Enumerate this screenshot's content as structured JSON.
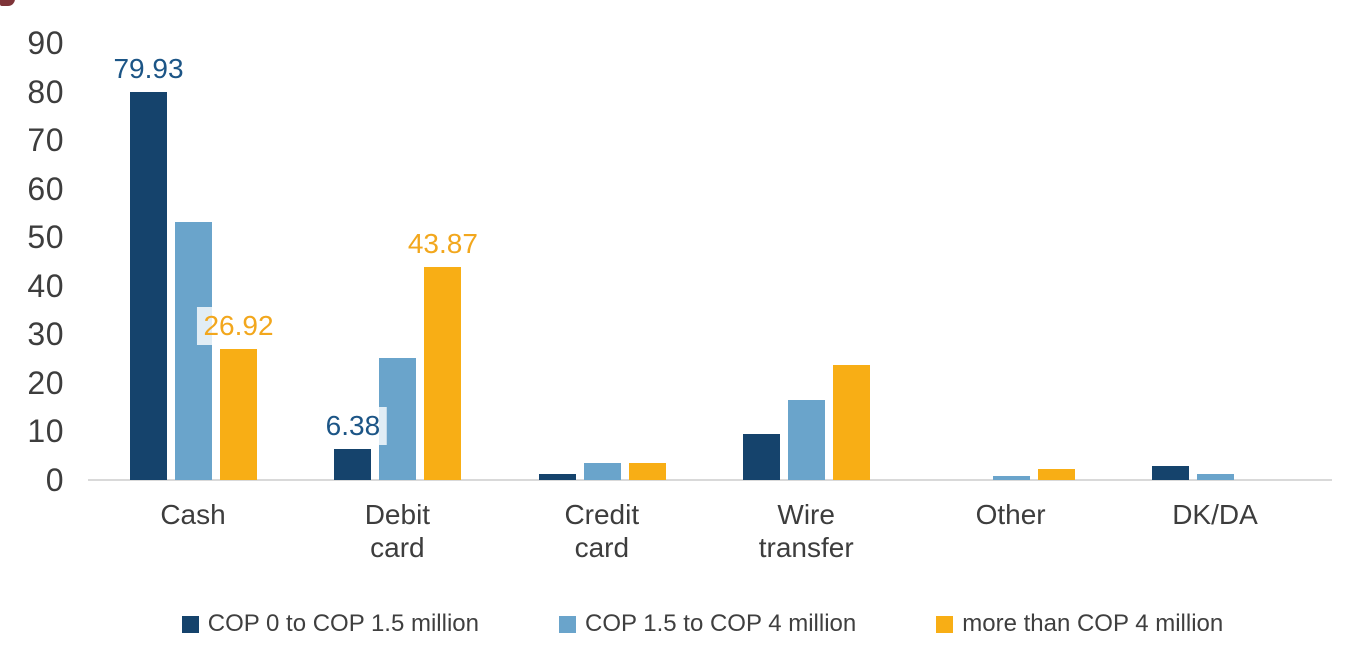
{
  "chart_data": {
    "type": "bar",
    "title": "",
    "xlabel": "",
    "ylabel": "",
    "categories": [
      "Cash",
      "Debit card",
      "Credit card",
      "Wire transfer",
      "Other",
      "DK/DA"
    ],
    "category_label_lines": [
      [
        "Cash"
      ],
      [
        "Debit",
        "card"
      ],
      [
        "Credit",
        "card"
      ],
      [
        "Wire",
        "transfer"
      ],
      [
        "Other"
      ],
      [
        "DK/DA"
      ]
    ],
    "series": [
      {
        "name": "COP 0 to COP 1.5 million",
        "color": "#15436C",
        "label_color": "#1C5586",
        "values": [
          79.93,
          6.38,
          1.2,
          9.5,
          0,
          2.9
        ]
      },
      {
        "name": "COP 1.5 to COP 4 million",
        "color": "#6AA4CB",
        "label_color": "#6AA4CB",
        "values": [
          53.1,
          25.1,
          3.6,
          16.5,
          0.8,
          1.2
        ]
      },
      {
        "name": "more than COP 4 million",
        "color": "#F8AE15",
        "label_color": "#F2A71D",
        "values": [
          26.92,
          43.87,
          3.6,
          23.7,
          2.3,
          0
        ]
      }
    ],
    "data_labels": [
      {
        "series": 0,
        "category": 0,
        "text": "79.93"
      },
      {
        "series": 2,
        "category": 0,
        "text": "26.92"
      },
      {
        "series": 0,
        "category": 1,
        "text": "6.38"
      },
      {
        "series": 2,
        "category": 1,
        "text": "43.87"
      }
    ],
    "yticks": [
      "0",
      "10",
      "20",
      "30",
      "40",
      "50",
      "60",
      "70",
      "80",
      "90"
    ],
    "ylim": [
      0,
      90
    ],
    "grid": false,
    "legend_position": "bottom"
  },
  "colors": {
    "background": "#FFFFFF",
    "axis_line": "#D9D9D9",
    "tick_text": "#3D3D3D",
    "category_text": "#3D3D3D",
    "legend_text": "#3F3F3F",
    "corner_artifact": "#7E3438"
  }
}
